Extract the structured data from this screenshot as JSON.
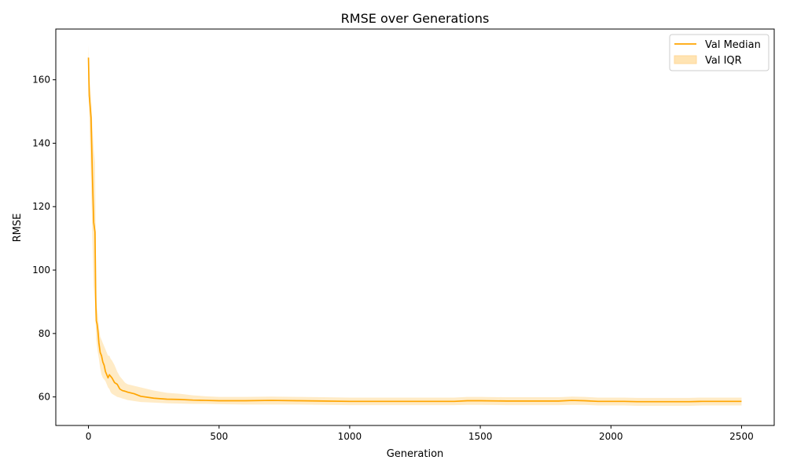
{
  "chart_data": {
    "type": "line",
    "title": "RMSE over Generations",
    "xlabel": "Generation",
    "ylabel": "RMSE",
    "xlim": [
      -125,
      2625
    ],
    "ylim": [
      51,
      176
    ],
    "xticks": [
      0,
      500,
      1000,
      1500,
      2000,
      2500
    ],
    "yticks": [
      60,
      80,
      100,
      120,
      140,
      160
    ],
    "grid": false,
    "legend_position": "upper-right",
    "colors": {
      "line": "#ffa500",
      "band": "#ffe4b3"
    },
    "series": [
      {
        "name": "Val Median",
        "kind": "line",
        "x": [
          0,
          3,
          6,
          10,
          15,
          20,
          25,
          28,
          30,
          33,
          36,
          40,
          45,
          50,
          55,
          60,
          65,
          70,
          75,
          80,
          85,
          90,
          100,
          110,
          120,
          130,
          140,
          150,
          175,
          200,
          250,
          300,
          350,
          400,
          450,
          500,
          600,
          700,
          800,
          900,
          1000,
          1100,
          1200,
          1300,
          1400,
          1450,
          1500,
          1600,
          1700,
          1800,
          1850,
          1900,
          1950,
          2000,
          2050,
          2100,
          2150,
          2200,
          2250,
          2300,
          2350,
          2400,
          2450,
          2500
        ],
        "values": [
          167,
          155,
          152,
          148,
          130,
          115,
          112,
          90,
          84,
          83,
          81,
          77,
          74,
          73,
          71,
          70,
          68,
          67,
          66,
          67,
          66.5,
          66,
          64.5,
          64,
          62.5,
          62,
          61.8,
          61.5,
          61,
          60.2,
          59.6,
          59.3,
          59.2,
          59,
          58.9,
          58.8,
          58.8,
          58.9,
          58.8,
          58.7,
          58.6,
          58.6,
          58.6,
          58.6,
          58.6,
          58.8,
          58.8,
          58.7,
          58.7,
          58.7,
          58.9,
          58.8,
          58.6,
          58.6,
          58.6,
          58.5,
          58.5,
          58.5,
          58.5,
          58.5,
          58.6,
          58.6,
          58.6,
          58.6
        ]
      },
      {
        "name": "Val IQR",
        "kind": "band",
        "x": [
          0,
          3,
          6,
          10,
          15,
          20,
          25,
          28,
          30,
          33,
          36,
          40,
          45,
          50,
          55,
          60,
          65,
          70,
          75,
          80,
          85,
          90,
          100,
          110,
          120,
          130,
          140,
          150,
          175,
          200,
          250,
          300,
          350,
          400,
          450,
          500,
          600,
          700,
          800,
          900,
          1000,
          1100,
          1200,
          1300,
          1400,
          1450,
          1500,
          1600,
          1700,
          1800,
          1850,
          1900,
          1950,
          2000,
          2050,
          2100,
          2150,
          2200,
          2250,
          2300,
          2350,
          2400,
          2450,
          2500
        ],
        "lower": [
          163,
          148,
          140,
          128,
          110,
          95,
          90,
          82,
          78,
          76,
          74,
          72,
          69,
          67,
          66,
          65.5,
          65,
          64,
          63,
          62.5,
          61.5,
          61,
          60.5,
          60,
          59.8,
          59.5,
          59.3,
          59,
          58.7,
          58.4,
          58.2,
          58,
          57.9,
          57.8,
          57.8,
          57.7,
          57.6,
          57.6,
          57.6,
          57.5,
          57.4,
          57.4,
          57.4,
          57.4,
          57.4,
          57.5,
          57.5,
          57.4,
          57.4,
          57.4,
          57.5,
          57.5,
          57.3,
          57.3,
          57.3,
          57.2,
          57.2,
          57.2,
          57.2,
          57.2,
          57.3,
          57.3,
          57.3,
          57.3
        ],
        "upper": [
          171,
          162,
          158,
          155,
          145,
          138,
          134,
          110,
          92,
          88,
          86,
          82,
          79,
          78,
          77,
          76,
          75,
          74,
          73,
          73,
          72,
          71.5,
          70,
          68,
          66.5,
          65.5,
          64.5,
          64,
          63.5,
          63,
          62,
          61.3,
          61,
          60.5,
          60.2,
          60,
          60,
          60.1,
          60,
          59.9,
          59.8,
          59.8,
          59.8,
          59.8,
          59.8,
          60,
          60,
          59.9,
          59.9,
          59.9,
          60.1,
          60,
          59.8,
          59.8,
          59.8,
          59.7,
          59.7,
          59.7,
          59.7,
          59.7,
          59.8,
          59.8,
          59.8,
          59.8
        ]
      }
    ]
  }
}
